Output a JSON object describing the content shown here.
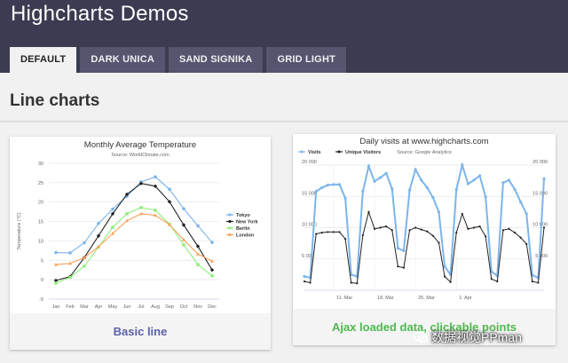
{
  "app": {
    "title": "Highcharts Demos"
  },
  "tabs": [
    {
      "label": "DEFAULT",
      "active": true
    },
    {
      "label": "DARK UNICA",
      "active": false
    },
    {
      "label": "SAND SIGNIKA",
      "active": false
    },
    {
      "label": "GRID LIGHT",
      "active": false
    }
  ],
  "section": {
    "title": "Line charts"
  },
  "cards": [
    {
      "label": "Basic line"
    },
    {
      "label": "Ajax loaded data, clickable points"
    }
  ],
  "watermark": "数据视觉PPman",
  "colors": {
    "header_bg": "#3b3b52",
    "tab_bg": "#555570",
    "basic_line_label": "#5c62a8",
    "ajax_label": "#4fb94f"
  },
  "chart_data": [
    {
      "type": "line",
      "title": "Monthly Average Temperature",
      "subtitle": "Source: WorldClimate.com",
      "ylabel": "Temperature (°C)",
      "xlabel": "",
      "categories": [
        "Jan",
        "Feb",
        "Mar",
        "Apr",
        "May",
        "Jun",
        "Jul",
        "Aug",
        "Sep",
        "Oct",
        "Nov",
        "Dec"
      ],
      "ylim": [
        -5,
        30
      ],
      "yticks": [
        "-5",
        "0",
        "5",
        "10",
        "15",
        "20",
        "25",
        "30"
      ],
      "legend": "right",
      "grid": true,
      "series": [
        {
          "name": "Tokyo",
          "color": "#7cb5ec",
          "values": [
            7.0,
            6.9,
            9.5,
            14.5,
            18.2,
            21.5,
            25.2,
            26.5,
            23.3,
            18.3,
            13.9,
            9.6
          ]
        },
        {
          "name": "New York",
          "color": "#222222",
          "values": [
            -0.2,
            0.8,
            5.7,
            11.3,
            17.0,
            22.0,
            24.8,
            24.1,
            20.1,
            14.1,
            8.6,
            2.5
          ]
        },
        {
          "name": "Berlin",
          "color": "#90ed7d",
          "values": [
            -0.9,
            0.6,
            3.5,
            8.4,
            13.5,
            17.0,
            18.6,
            17.9,
            14.3,
            9.0,
            3.9,
            1.0
          ]
        },
        {
          "name": "London",
          "color": "#f7a35c",
          "values": [
            3.9,
            4.2,
            5.7,
            8.5,
            11.9,
            15.2,
            17.0,
            16.6,
            14.2,
            10.3,
            6.6,
            4.8
          ]
        }
      ]
    },
    {
      "type": "line",
      "title": "Daily visits at www.highcharts.com",
      "subtitle": "Source: Google Analytics",
      "ylim": [
        0,
        20000
      ],
      "yticks": [
        "0",
        "5 000",
        "10 000",
        "15 000",
        "20 000"
      ],
      "xticks": [
        "11. Mar",
        "18. Mar",
        "25. Mar",
        "1. Apr"
      ],
      "legend": "top-left",
      "grid": true,
      "series": [
        {
          "name": "Visits",
          "color": "#7cb5ec",
          "values": [
            2200,
            2000,
            15800,
            16400,
            16800,
            16900,
            16900,
            14700,
            2500,
            2200,
            15800,
            19800,
            17400,
            18000,
            18700,
            16200,
            6700,
            6300,
            16000,
            19300,
            17600,
            16400,
            14800,
            12500,
            3800,
            2500,
            16100,
            20000,
            17000,
            17600,
            18300,
            14900,
            3000,
            2300,
            17200,
            17600,
            16100,
            14100,
            12200,
            2400,
            2000,
            17800
          ]
        },
        {
          "name": "Unique Visitors",
          "color": "#222222",
          "values": [
            1400,
            1200,
            9000,
            9200,
            9300,
            9300,
            9300,
            8200,
            1200,
            1100,
            8800,
            12500,
            9800,
            10000,
            10200,
            9600,
            3800,
            3600,
            9600,
            10000,
            9700,
            9400,
            8700,
            7600,
            2200,
            1300,
            9200,
            12200,
            9800,
            10000,
            10200,
            8600,
            1800,
            1400,
            9600,
            9800,
            9200,
            8400,
            7400,
            1400,
            1200,
            10000
          ]
        }
      ]
    }
  ]
}
